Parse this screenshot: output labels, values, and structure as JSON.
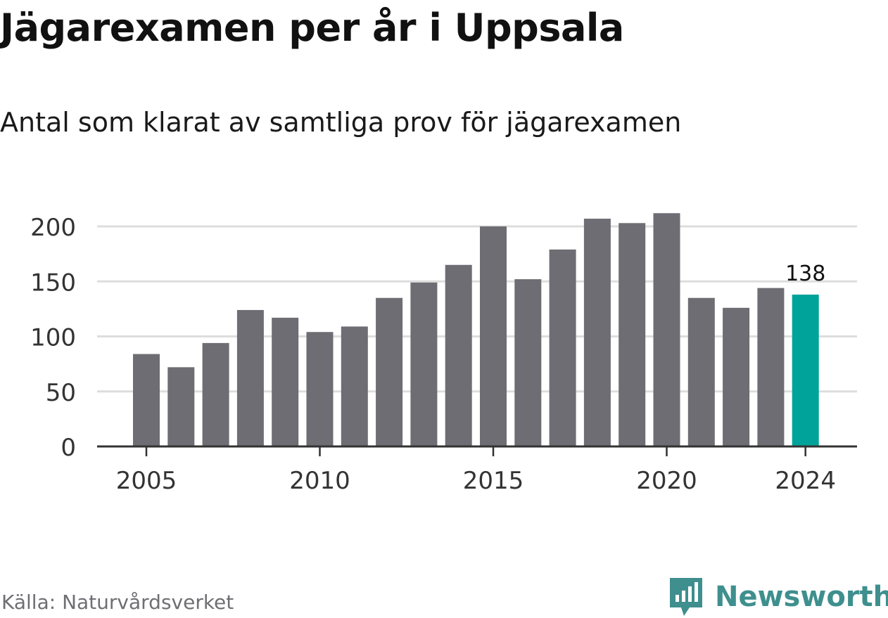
{
  "title": "Jägarexamen per år i Uppsala",
  "subtitle": "Antal som klarat av samtliga prov för jägarexamen",
  "source": "Källa: Naturvårdsverket",
  "brand": {
    "name": "Newsworthy",
    "icon": "newsworthy-logo-icon"
  },
  "colors": {
    "bar": "#6e6d73",
    "highlight": "#00a39a",
    "grid": "#dddddd",
    "axis": "#333333",
    "brand": "#3e8f8e"
  },
  "chart_data": {
    "type": "bar",
    "categories": [
      "2005",
      "2006",
      "2007",
      "2008",
      "2009",
      "2010",
      "2011",
      "2012",
      "2013",
      "2014",
      "2015",
      "2016",
      "2017",
      "2018",
      "2019",
      "2020",
      "2021",
      "2022",
      "2023",
      "2024"
    ],
    "values": [
      84,
      72,
      94,
      124,
      117,
      104,
      109,
      135,
      149,
      165,
      200,
      152,
      179,
      207,
      203,
      212,
      135,
      126,
      144,
      138
    ],
    "highlight_index": 19,
    "data_labels": [
      {
        "index": 19,
        "text": "138"
      }
    ],
    "x_ticks": [
      "2005",
      "2010",
      "2015",
      "2020",
      "2024"
    ],
    "y_ticks": [
      0,
      50,
      100,
      150,
      200
    ],
    "ylim": [
      0,
      220
    ],
    "grid": true,
    "xlabel": "",
    "ylabel": ""
  }
}
